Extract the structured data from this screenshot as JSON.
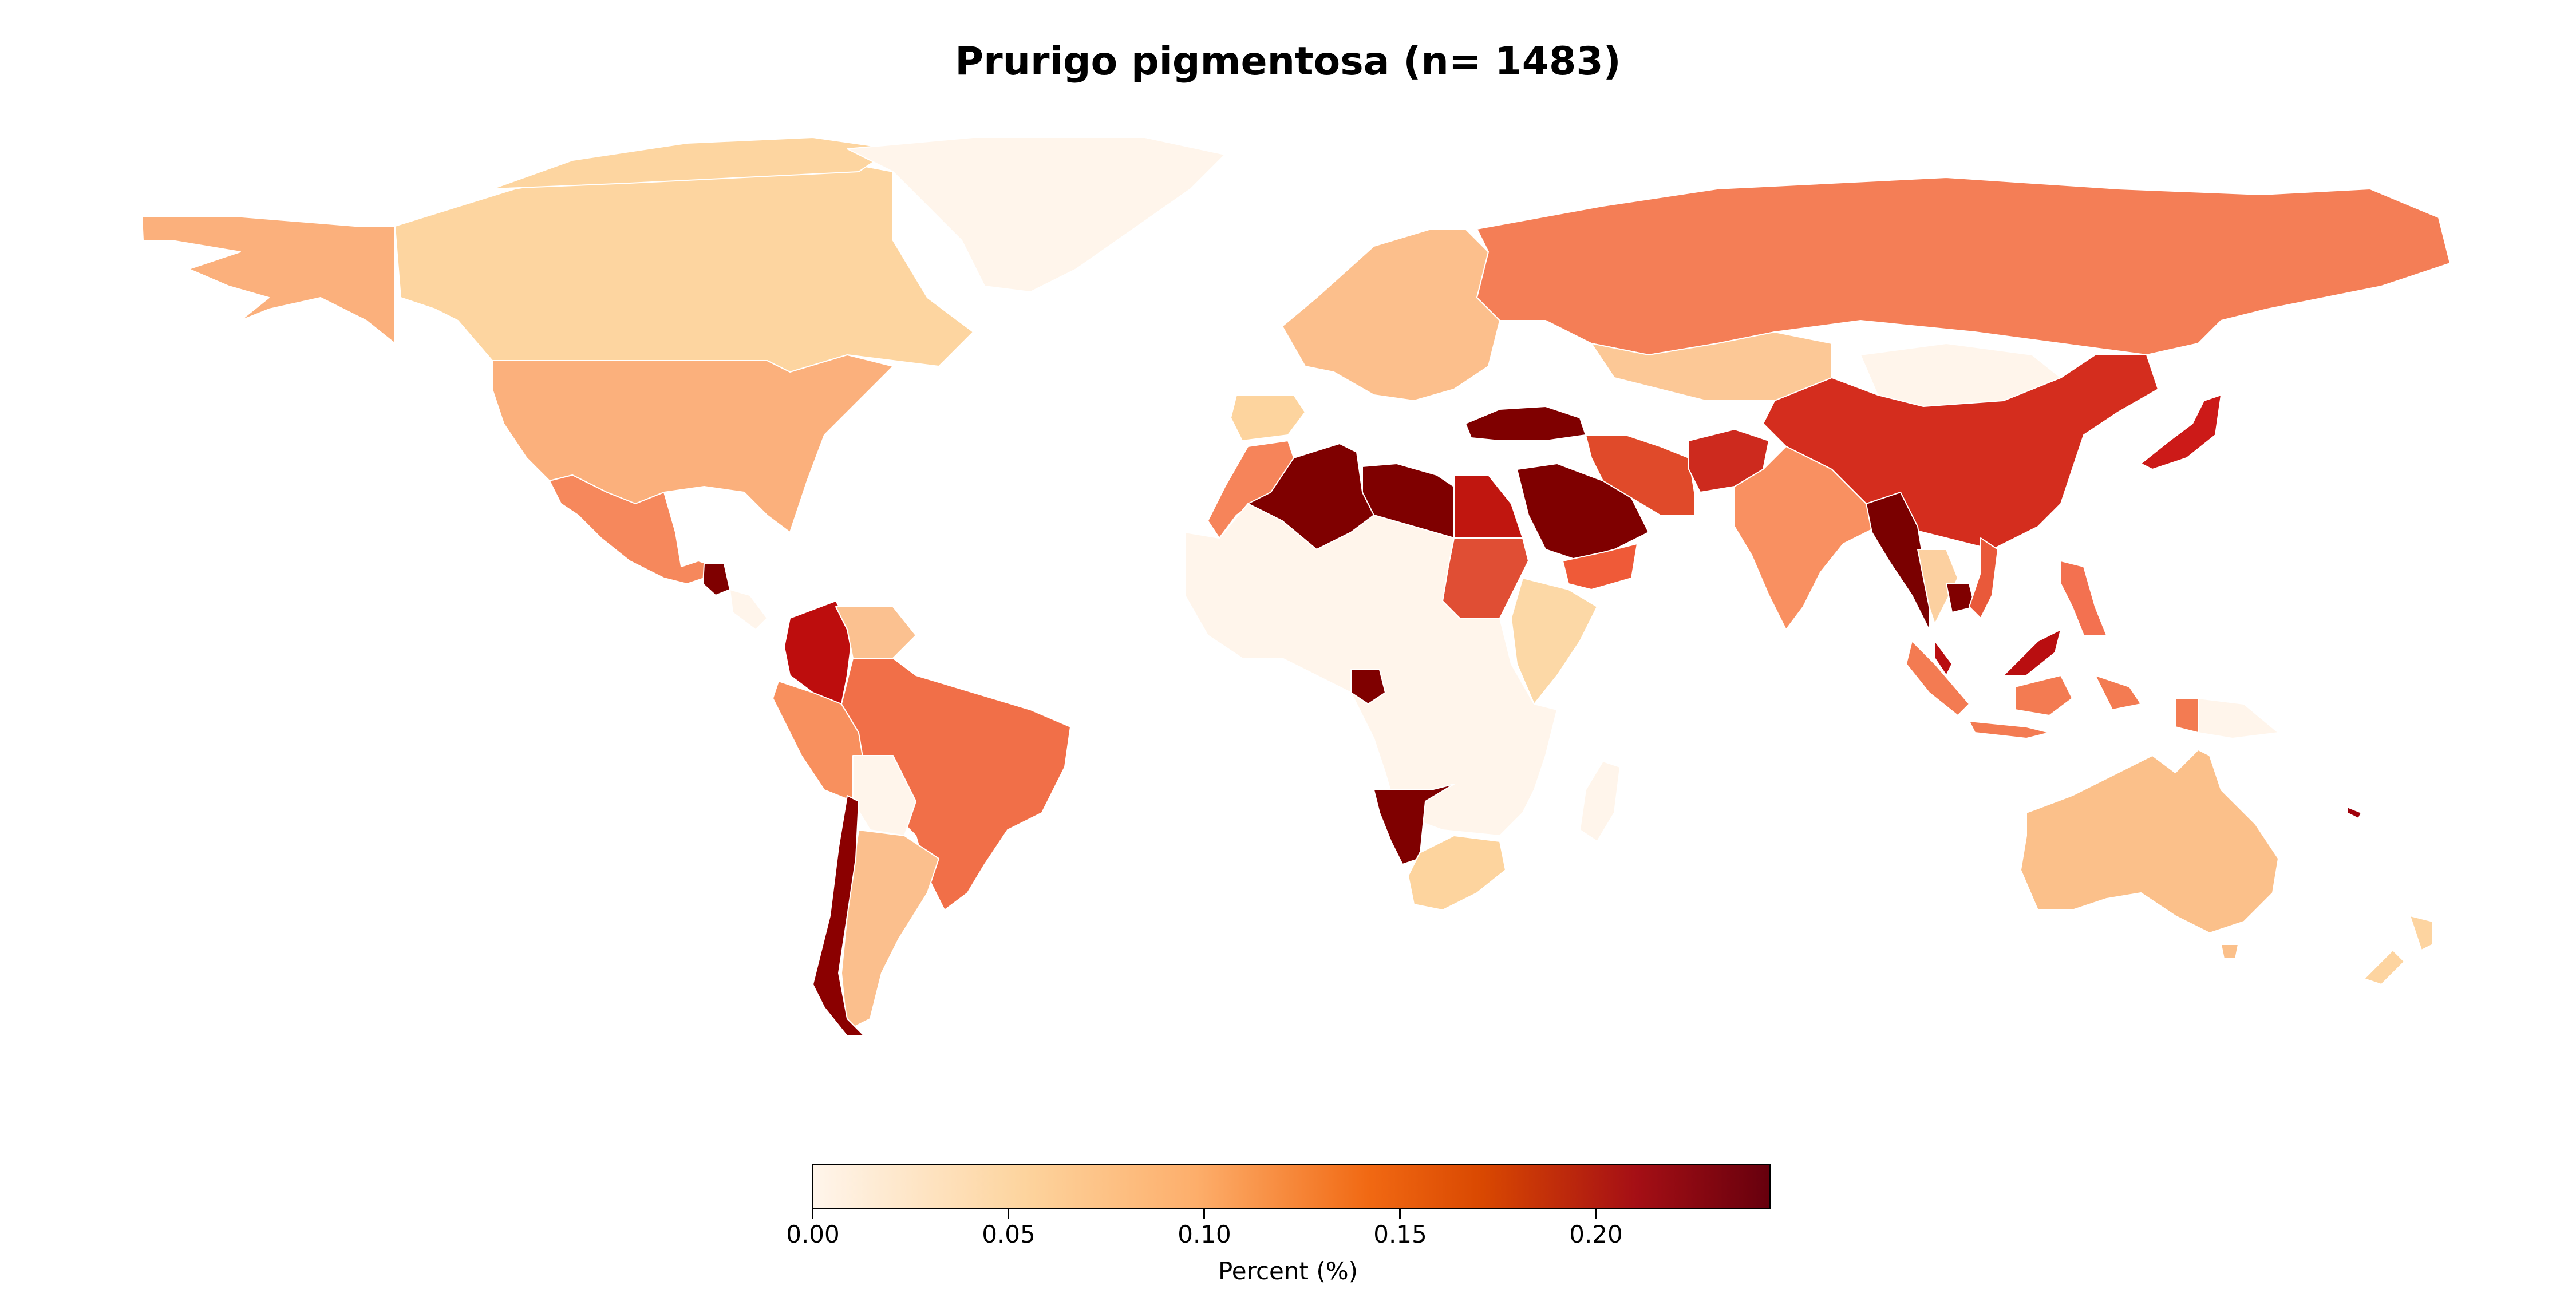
{
  "title": "Prurigo pigmentosa (n= 1483)",
  "colorbar": {
    "label": "Percent (%)",
    "ticks": [
      "0.00",
      "0.05",
      "0.10",
      "0.15",
      "0.20"
    ],
    "tick_values": [
      0.0,
      0.05,
      0.1,
      0.15,
      0.2
    ],
    "range": [
      0.0,
      0.245
    ],
    "colormap": "OrRd",
    "stops": [
      "#fff5eb",
      "#fdd49e",
      "#fdae6b",
      "#f16913",
      "#d94801",
      "#a50f15",
      "#67000d"
    ]
  },
  "regions": [
    {
      "id": "alaska",
      "name": "United States",
      "color": "#fbb07c"
    },
    {
      "id": "canada",
      "name": "Canada",
      "color": "#fdd5a0"
    },
    {
      "id": "usa",
      "name": "United States",
      "color": "#fbb07c"
    },
    {
      "id": "greenland",
      "name": "Greenland",
      "color": "#fff5eb"
    },
    {
      "id": "mexico",
      "name": "Mexico",
      "color": "#f6885c"
    },
    {
      "id": "guatemala",
      "name": "Guatemala",
      "color": "#7f0000"
    },
    {
      "id": "colombia",
      "name": "Colombia",
      "color": "#bd0d0d"
    },
    {
      "id": "venezuela",
      "name": "Venezuela",
      "color": "#fbc190"
    },
    {
      "id": "peru",
      "name": "Peru",
      "color": "#f8905e"
    },
    {
      "id": "brazil",
      "name": "Brazil",
      "color": "#f16f48"
    },
    {
      "id": "bolivia",
      "name": "Bolivia",
      "color": "#fff5eb"
    },
    {
      "id": "argentina",
      "name": "Argentina",
      "color": "#fbbf8d"
    },
    {
      "id": "chile",
      "name": "Chile",
      "color": "#8b0000"
    },
    {
      "id": "europe",
      "name": "Europe",
      "color": "#fcbf8c"
    },
    {
      "id": "spain",
      "name": "Spain",
      "color": "#fdd49e"
    },
    {
      "id": "russia",
      "name": "Russia",
      "color": "#f47e56"
    },
    {
      "id": "kazakhstan",
      "name": "Kazakhstan",
      "color": "#fcc896"
    },
    {
      "id": "mongolia",
      "name": "Mongolia",
      "color": "#fff5eb"
    },
    {
      "id": "china",
      "name": "China",
      "color": "#d42d1e"
    },
    {
      "id": "japan",
      "name": "Japan",
      "color": "#cc1a18"
    },
    {
      "id": "turkey",
      "name": "Turkey",
      "color": "#7f0000"
    },
    {
      "id": "iran",
      "name": "Iran",
      "color": "#e04a2a"
    },
    {
      "id": "afghanistan",
      "name": "Afghanistan",
      "color": "#cd2a1e"
    },
    {
      "id": "saudi",
      "name": "Saudi Arabia",
      "color": "#7f0000"
    },
    {
      "id": "yemen",
      "name": "Yemen",
      "color": "#ef5a38"
    },
    {
      "id": "india",
      "name": "India",
      "color": "#f99061"
    },
    {
      "id": "myanmar",
      "name": "Myanmar",
      "color": "#7a0000"
    },
    {
      "id": "thailand",
      "name": "Thailand",
      "color": "#fcd0a0"
    },
    {
      "id": "cambodia",
      "name": "Cambodia",
      "color": "#800000"
    },
    {
      "id": "vietnam",
      "name": "Vietnam",
      "color": "#e9593a"
    },
    {
      "id": "philippines",
      "name": "Philippines",
      "color": "#f37150"
    },
    {
      "id": "malaysia",
      "name": "Malaysia",
      "color": "#b90e10"
    },
    {
      "id": "indonesia",
      "name": "Indonesia",
      "color": "#f37b52"
    },
    {
      "id": "png",
      "name": "Papua New Guinea",
      "color": "#fff5eb"
    },
    {
      "id": "australia",
      "name": "Australia",
      "color": "#fbc08a"
    },
    {
      "id": "newzealand",
      "name": "New Zealand",
      "color": "#fdd4a0"
    },
    {
      "id": "morocco",
      "name": "Morocco",
      "color": "#f6845a"
    },
    {
      "id": "algeria",
      "name": "Algeria",
      "color": "#7f0000"
    },
    {
      "id": "libya",
      "name": "Libya",
      "color": "#7f0000"
    },
    {
      "id": "egypt",
      "name": "Egypt",
      "color": "#c0160f"
    },
    {
      "id": "sudan",
      "name": "Sudan",
      "color": "#e04e34"
    },
    {
      "id": "ethiopia",
      "name": "Ethiopia",
      "color": "#fcd8a6"
    },
    {
      "id": "africa",
      "name": "Africa",
      "color": "#fff5eb"
    },
    {
      "id": "gabon",
      "name": "Gabon",
      "color": "#7f0000"
    },
    {
      "id": "namibia",
      "name": "Namibia",
      "color": "#7f0000"
    },
    {
      "id": "southafrica",
      "name": "South Africa",
      "color": "#fdd49e"
    },
    {
      "id": "madagascar",
      "name": "Madagascar",
      "color": "#fff5eb"
    },
    {
      "id": "fiji",
      "name": "Fiji",
      "color": "#a0000a"
    }
  ]
}
